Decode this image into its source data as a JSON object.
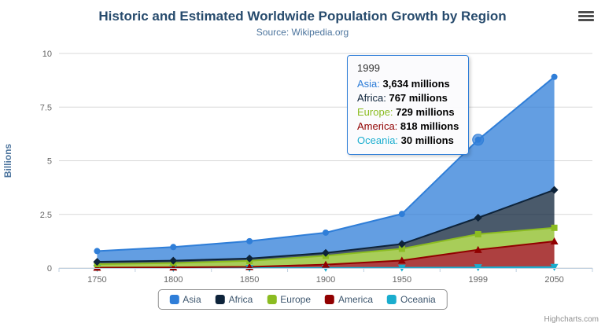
{
  "chart": {
    "title": "Historic and Estimated Worldwide Population Growth by Region",
    "subtitle": "Source: Wikipedia.org",
    "credits": "Highcharts.com"
  },
  "chart_data": {
    "type": "area",
    "stacking": "normal",
    "title": "Historic and Estimated Worldwide Population Growth by Region",
    "subtitle": "Source: Wikipedia.org",
    "categories": [
      "1750",
      "1800",
      "1850",
      "1900",
      "1950",
      "1999",
      "2050"
    ],
    "xlabel": "",
    "ylabel": "Billions",
    "ylim": [
      0,
      10
    ],
    "yticks": [
      0,
      2.5,
      5,
      7.5,
      10
    ],
    "values_unit": "millions",
    "grid": true,
    "legend_position": "bottom",
    "series": [
      {
        "name": "Asia",
        "color": "#2f7ed8",
        "marker": "circle",
        "values": [
          502,
          635,
          809,
          947,
          1402,
          3634,
          5268
        ]
      },
      {
        "name": "Africa",
        "color": "#0d233a",
        "marker": "diamond",
        "values": [
          106,
          107,
          111,
          133,
          221,
          767,
          1766
        ]
      },
      {
        "name": "Europe",
        "color": "#8bbc21",
        "marker": "square",
        "values": [
          163,
          203,
          276,
          408,
          547,
          729,
          628
        ]
      },
      {
        "name": "America",
        "color": "#910000",
        "marker": "triangle",
        "values": [
          18,
          31,
          54,
          156,
          339,
          818,
          1201
        ]
      },
      {
        "name": "Oceania",
        "color": "#1aadce",
        "marker": "triangle-down",
        "values": [
          2,
          2,
          2,
          6,
          13,
          30,
          46
        ]
      }
    ]
  },
  "tooltip": {
    "header": "1999",
    "anchor_series": "Asia",
    "anchor_category": "1999",
    "rows": [
      {
        "name": "Asia",
        "value": "3,634 millions"
      },
      {
        "name": "Africa",
        "value": "767 millions"
      },
      {
        "name": "Europe",
        "value": "729 millions"
      },
      {
        "name": "America",
        "value": "818 millions"
      },
      {
        "name": "Oceania",
        "value": "30 millions"
      }
    ]
  }
}
